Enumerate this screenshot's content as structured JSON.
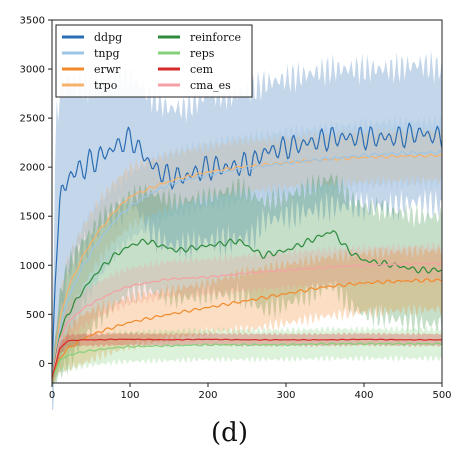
{
  "caption": "(d)",
  "chart_data": {
    "type": "line",
    "title": "",
    "xlabel": "",
    "ylabel": "",
    "xlim": [
      0,
      500
    ],
    "ylim": [
      -200,
      3500
    ],
    "xticks": [
      0,
      100,
      200,
      300,
      400,
      500
    ],
    "yticks": [
      0,
      500,
      1000,
      1500,
      2000,
      2500,
      3000,
      3500
    ],
    "grid": false,
    "legend_position": "top-left",
    "series": [
      {
        "name": "ddpg",
        "color": "#2a6db3",
        "x": [
          0,
          5,
          10,
          20,
          30,
          50,
          70,
          90,
          100,
          110,
          130,
          150,
          170,
          200,
          230,
          260,
          270,
          300,
          330,
          360,
          400,
          440,
          470,
          500
        ],
        "y": [
          -150,
          1200,
          1600,
          1900,
          1950,
          2050,
          2150,
          2250,
          2300,
          2200,
          2000,
          1900,
          1900,
          2000,
          2000,
          2050,
          2150,
          2200,
          2250,
          2300,
          2300,
          2300,
          2350,
          2300
        ],
        "band": [
          400,
          1200,
          1200,
          1000,
          900,
          800,
          700,
          700,
          650,
          650,
          700,
          700,
          700,
          750,
          750,
          750,
          700,
          700,
          700,
          700,
          700,
          700,
          700,
          700
        ]
      },
      {
        "name": "trpo",
        "color": "#f5b26b",
        "x": [
          0,
          10,
          20,
          40,
          60,
          80,
          100,
          130,
          160,
          200,
          240,
          280,
          320,
          360,
          400,
          440,
          500
        ],
        "y": [
          -150,
          450,
          750,
          1100,
          1350,
          1550,
          1700,
          1800,
          1880,
          1950,
          2000,
          2030,
          2060,
          2080,
          2100,
          2110,
          2120
        ],
        "band": [
          100,
          250,
          300,
          300,
          300,
          300,
          300,
          280,
          270,
          260,
          260,
          250,
          250,
          250,
          250,
          250,
          250
        ]
      },
      {
        "name": "tnpg",
        "color": "#9cc4e4",
        "x": [
          0,
          10,
          20,
          40,
          60,
          80,
          100,
          130,
          160,
          200,
          240,
          280,
          320,
          360,
          400,
          440,
          500
        ],
        "y": [
          -150,
          350,
          650,
          1000,
          1250,
          1450,
          1600,
          1750,
          1850,
          1920,
          1980,
          2020,
          2060,
          2090,
          2120,
          2140,
          2150
        ],
        "band": [
          100,
          300,
          400,
          400,
          380,
          350,
          330,
          320,
          320,
          320,
          320,
          320,
          320,
          320,
          320,
          320,
          320
        ]
      },
      {
        "name": "reinforce",
        "color": "#2e8b3d",
        "x": [
          0,
          10,
          20,
          40,
          60,
          80,
          100,
          120,
          140,
          160,
          200,
          240,
          270,
          300,
          330,
          360,
          380,
          400,
          440,
          470,
          500
        ],
        "y": [
          -150,
          300,
          500,
          750,
          950,
          1100,
          1200,
          1250,
          1200,
          1150,
          1200,
          1250,
          1100,
          1150,
          1250,
          1350,
          1150,
          1050,
          1000,
          950,
          950
        ],
        "band": [
          100,
          400,
          500,
          500,
          500,
          500,
          500,
          500,
          500,
          500,
          500,
          550,
          550,
          550,
          550,
          550,
          550,
          550,
          550,
          550,
          550
        ]
      },
      {
        "name": "cma_es",
        "color": "#f4a0a4",
        "x": [
          0,
          10,
          20,
          40,
          60,
          80,
          100,
          150,
          200,
          250,
          300,
          350,
          400,
          450,
          500
        ],
        "y": [
          -150,
          250,
          420,
          560,
          650,
          730,
          790,
          860,
          880,
          920,
          950,
          980,
          1000,
          1010,
          1020
        ],
        "band": [
          80,
          150,
          180,
          180,
          180,
          180,
          180,
          180,
          180,
          180,
          180,
          180,
          180,
          180,
          180
        ]
      },
      {
        "name": "erwr",
        "color": "#f28a2b",
        "x": [
          0,
          10,
          20,
          40,
          60,
          80,
          100,
          150,
          200,
          250,
          300,
          350,
          400,
          450,
          500
        ],
        "y": [
          -150,
          50,
          150,
          250,
          320,
          370,
          420,
          500,
          570,
          640,
          710,
          780,
          820,
          840,
          850
        ],
        "band": [
          80,
          120,
          200,
          250,
          250,
          250,
          250,
          250,
          250,
          300,
          300,
          300,
          300,
          300,
          300
        ]
      },
      {
        "name": "reps",
        "color": "#86d07a",
        "x": [
          0,
          10,
          20,
          40,
          60,
          80,
          100,
          150,
          200,
          250,
          300,
          350,
          400,
          450,
          500
        ],
        "y": [
          -150,
          30,
          80,
          120,
          140,
          160,
          170,
          180,
          190,
          190,
          190,
          200,
          200,
          200,
          200
        ],
        "band": [
          60,
          120,
          150,
          150,
          150,
          150,
          150,
          150,
          150,
          150,
          150,
          150,
          150,
          150,
          150
        ]
      },
      {
        "name": "cem",
        "color": "#d62a2a",
        "x": [
          0,
          10,
          20,
          40,
          60,
          80,
          100,
          150,
          200,
          250,
          300,
          350,
          400,
          450,
          500
        ],
        "y": [
          -150,
          150,
          230,
          240,
          240,
          245,
          245,
          240,
          245,
          240,
          240,
          240,
          245,
          240,
          240
        ],
        "band": [
          60,
          60,
          60,
          60,
          60,
          60,
          60,
          60,
          60,
          60,
          60,
          60,
          60,
          60,
          60
        ]
      }
    ],
    "legend": [
      {
        "label": "ddpg",
        "color": "#2a6db3"
      },
      {
        "label": "tnpg",
        "color": "#9cc4e4"
      },
      {
        "label": "erwr",
        "color": "#f28a2b"
      },
      {
        "label": "trpo",
        "color": "#f5b26b"
      },
      {
        "label": "reinforce",
        "color": "#2e8b3d"
      },
      {
        "label": "reps",
        "color": "#86d07a"
      },
      {
        "label": "cem",
        "color": "#d62a2a"
      },
      {
        "label": "cma_es",
        "color": "#f4a0a4"
      }
    ]
  }
}
